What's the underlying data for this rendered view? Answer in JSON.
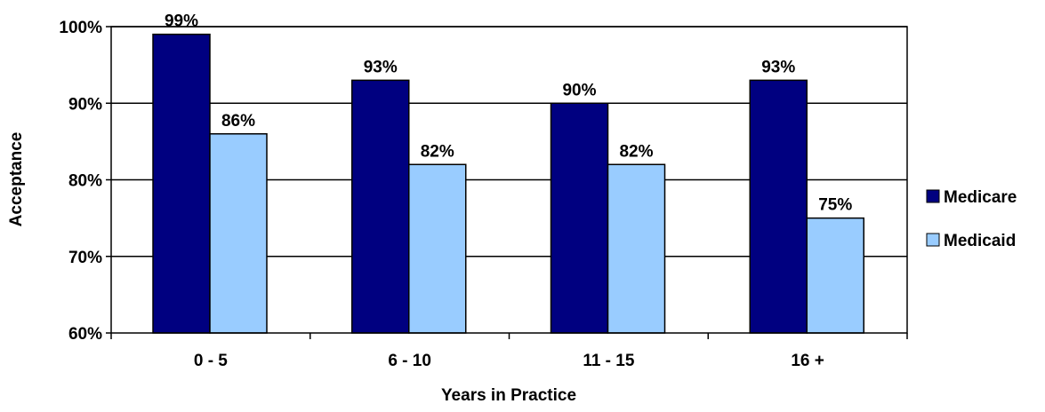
{
  "chart_data": {
    "type": "bar",
    "title": "",
    "xlabel": "Years in Practice",
    "ylabel": "Acceptance",
    "categories": [
      "0 - 5",
      "6 - 10",
      "11 - 15",
      "16 +"
    ],
    "series": [
      {
        "name": "Medicare",
        "values": [
          99,
          93,
          90,
          93
        ],
        "color": "#000080"
      },
      {
        "name": "Medicaid",
        "values": [
          86,
          82,
          82,
          75
        ],
        "color": "#99ccff"
      }
    ],
    "ylim": [
      60,
      100
    ],
    "yticks": [
      60,
      70,
      80,
      90,
      100
    ],
    "ytick_labels": [
      "60%",
      "70%",
      "80%",
      "90%",
      "100%"
    ],
    "data_labels": [
      [
        "99%",
        "93%",
        "90%",
        "93%"
      ],
      [
        "86%",
        "82%",
        "82%",
        "75%"
      ]
    ],
    "grid": true,
    "legend_position": "right"
  }
}
